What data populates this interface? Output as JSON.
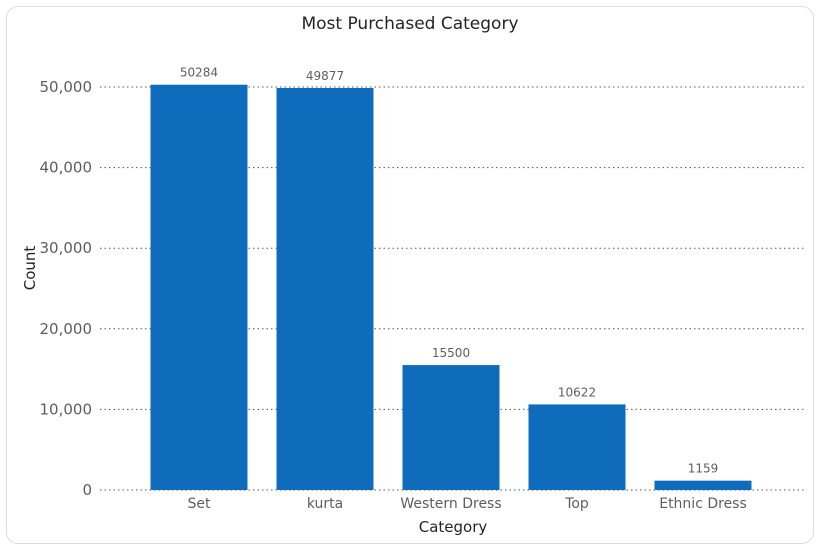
{
  "chart_data": {
    "type": "bar",
    "title": "Most Purchased Category",
    "xlabel": "Category",
    "ylabel": "Count",
    "categories": [
      "Set",
      "kurta",
      "Western Dress",
      "Top",
      "Ethnic Dress"
    ],
    "values": [
      50284,
      49877,
      15500,
      10622,
      1159
    ],
    "data_labels": [
      "50284",
      "49877",
      "15500",
      "10622",
      "1159"
    ],
    "ylim": [
      0,
      50000
    ],
    "yticks": [
      0,
      10000,
      20000,
      30000,
      40000,
      50000
    ],
    "ytick_labels": [
      "0",
      "10,000",
      "20,000",
      "30,000",
      "40,000",
      "50,000"
    ],
    "grid": true,
    "legend": "none",
    "bar_color": "#0F6CBD"
  }
}
